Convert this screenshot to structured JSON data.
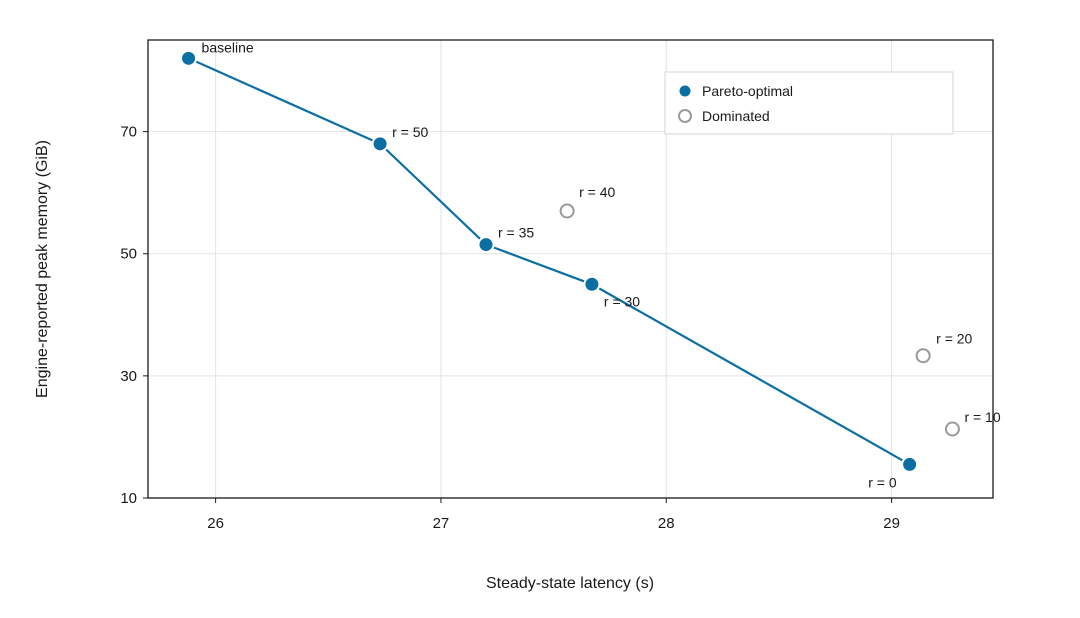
{
  "chart_data": {
    "type": "scatter",
    "xlabel": "Steady-state latency (s)",
    "ylabel": "Engine-reported peak memory (GiB)",
    "xlim": [
      25.7,
      29.45
    ],
    "ylim": [
      10,
      85
    ],
    "xticks": [
      26,
      27,
      28,
      29
    ],
    "yticks": [
      10,
      30,
      50,
      70
    ],
    "grid": true,
    "legend_position": "top-right",
    "colors": {
      "pareto": "#0b6fa4",
      "dominated": "#9a9a9a"
    },
    "series": [
      {
        "name": "Pareto-optimal",
        "style": "filled",
        "connected": true,
        "points": [
          {
            "x": 25.88,
            "y": 82.0,
            "label": "baseline"
          },
          {
            "x": 26.73,
            "y": 68.0,
            "label": "r = 50"
          },
          {
            "x": 27.2,
            "y": 51.5,
            "label": "r = 35"
          },
          {
            "x": 27.67,
            "y": 45.0,
            "label": "r = 30"
          },
          {
            "x": 29.08,
            "y": 15.5,
            "label": "r = 0"
          }
        ]
      },
      {
        "name": "Dominated",
        "style": "hollow",
        "connected": false,
        "points": [
          {
            "x": 27.56,
            "y": 57.0,
            "label": "r = 40"
          },
          {
            "x": 29.14,
            "y": 33.3,
            "label": "r = 20"
          },
          {
            "x": 29.27,
            "y": 21.3,
            "label": "r = 10"
          }
        ]
      }
    ]
  }
}
